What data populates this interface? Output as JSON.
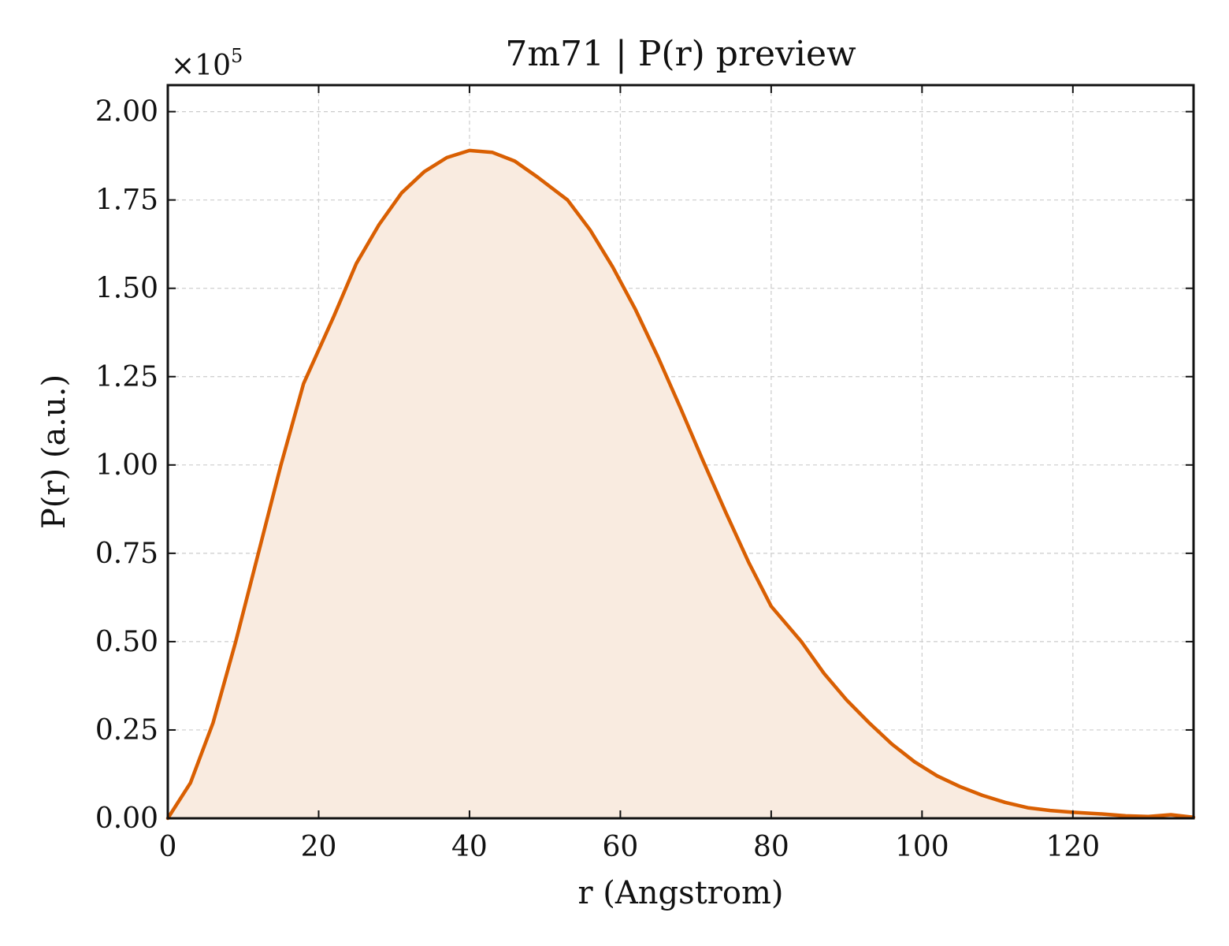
{
  "chart_data": {
    "type": "area",
    "title": "7m71 | P(r) preview",
    "xlabel": "r (Angstrom)",
    "ylabel": "P(r) (a.u.)",
    "y_multiplier_prefix": "×10",
    "y_multiplier_exponent": "5",
    "xlim": [
      0,
      136
    ],
    "ylim": [
      0,
      2.075
    ],
    "xticks": [
      0,
      20,
      40,
      60,
      80,
      100,
      120
    ],
    "xtick_labels": [
      "0",
      "20",
      "40",
      "60",
      "80",
      "100",
      "120"
    ],
    "yticks": [
      0,
      0.25,
      0.5,
      0.75,
      1.0,
      1.25,
      1.5,
      1.75,
      2.0
    ],
    "ytick_labels": [
      "0.00",
      "0.25",
      "0.50",
      "0.75",
      "1.00",
      "1.25",
      "1.50",
      "1.75",
      "2.00"
    ],
    "grid": true,
    "line_color": "#d95f02",
    "fill_color": "#f9ebe0",
    "series": [
      {
        "x": [
          0,
          3,
          6,
          9,
          12,
          15,
          18,
          22,
          25,
          28,
          31,
          34,
          37,
          40,
          43,
          46,
          49,
          53,
          56,
          59,
          62,
          65,
          68,
          71,
          74,
          77,
          80,
          84,
          87,
          90,
          93,
          96,
          99,
          102,
          105,
          108,
          111,
          114,
          117,
          120,
          124,
          127,
          130,
          133,
          136
        ],
        "y": [
          0.0,
          0.1,
          0.27,
          0.5,
          0.75,
          1.0,
          1.23,
          1.42,
          1.57,
          1.68,
          1.77,
          1.83,
          1.87,
          1.89,
          1.885,
          1.86,
          1.815,
          1.75,
          1.665,
          1.56,
          1.44,
          1.305,
          1.16,
          1.01,
          0.865,
          0.725,
          0.6,
          0.5,
          0.41,
          0.335,
          0.27,
          0.21,
          0.16,
          0.12,
          0.09,
          0.065,
          0.045,
          0.03,
          0.022,
          0.017,
          0.012,
          0.007,
          0.005,
          0.01,
          0.003
        ]
      }
    ]
  }
}
